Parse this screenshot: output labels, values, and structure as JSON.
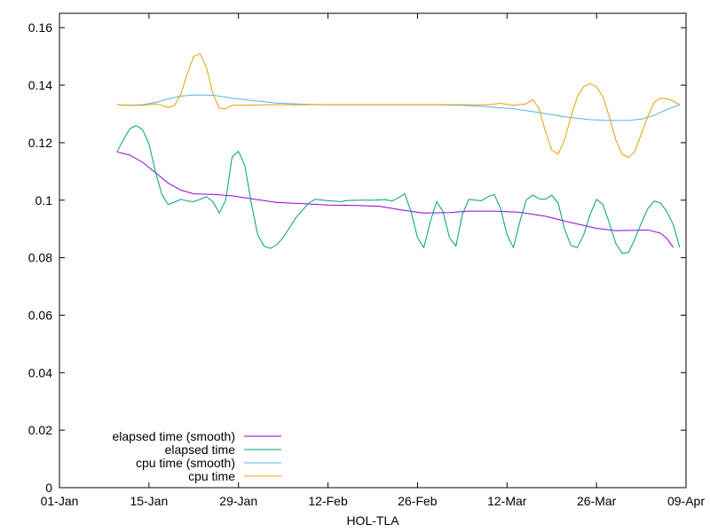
{
  "chart_data": {
    "type": "line",
    "title": "",
    "xlabel": "HOL-TLA",
    "ylabel": "",
    "x_ticks": [
      "01-Jan",
      "15-Jan",
      "29-Jan",
      "12-Feb",
      "26-Feb",
      "12-Mar",
      "26-Mar",
      "09-Apr"
    ],
    "y_ticks": [
      "0",
      "0.02",
      "0.04",
      "0.06",
      "0.08",
      "0.1",
      "0.12",
      "0.14",
      "0.16"
    ],
    "xlim": [
      "2023-01-01",
      "2023-04-09"
    ],
    "ylim": [
      0,
      0.165
    ],
    "grid": false,
    "legend_position": "bottom-left",
    "series": [
      {
        "name": "elapsed time (smooth)",
        "color": "#9400d3",
        "points": [
          [
            "2023-01-10",
            0.1168
          ],
          [
            "2023-01-12",
            0.1157
          ],
          [
            "2023-01-14",
            0.1132
          ],
          [
            "2023-01-16",
            0.1096
          ],
          [
            "2023-01-18",
            0.1059
          ],
          [
            "2023-01-20",
            0.1035
          ],
          [
            "2023-01-22",
            0.1022
          ],
          [
            "2023-01-25",
            0.102
          ],
          [
            "2023-01-28",
            0.1015
          ],
          [
            "2023-01-31",
            0.1005
          ],
          [
            "2023-02-04",
            0.0992
          ],
          [
            "2023-02-08",
            0.0988
          ],
          [
            "2023-02-12",
            0.0983
          ],
          [
            "2023-02-16",
            0.0982
          ],
          [
            "2023-02-20",
            0.0979
          ],
          [
            "2023-02-24",
            0.0964
          ],
          [
            "2023-02-27",
            0.0955
          ],
          [
            "2023-03-03",
            0.0957
          ],
          [
            "2023-03-06",
            0.0962
          ],
          [
            "2023-03-10",
            0.0962
          ],
          [
            "2023-03-14",
            0.0958
          ],
          [
            "2023-03-18",
            0.0944
          ],
          [
            "2023-03-22",
            0.0922
          ],
          [
            "2023-03-26",
            0.0902
          ],
          [
            "2023-03-29",
            0.0894
          ],
          [
            "2023-04-01",
            0.0895
          ],
          [
            "2023-04-03",
            0.0897
          ],
          [
            "2023-04-05",
            0.0885
          ],
          [
            "2023-04-06",
            0.0867
          ],
          [
            "2023-04-07",
            0.0836
          ]
        ]
      },
      {
        "name": "elapsed time",
        "color": "#009e73",
        "points": [
          [
            "2023-01-10",
            0.1168
          ],
          [
            "2023-01-11",
            0.121
          ],
          [
            "2023-01-12",
            0.1248
          ],
          [
            "2023-01-13",
            0.126
          ],
          [
            "2023-01-14",
            0.1245
          ],
          [
            "2023-01-15",
            0.1195
          ],
          [
            "2023-01-16",
            0.11
          ],
          [
            "2023-01-17",
            0.102
          ],
          [
            "2023-01-18",
            0.0985
          ],
          [
            "2023-01-19",
            0.0993
          ],
          [
            "2023-01-20",
            0.1003
          ],
          [
            "2023-01-21",
            0.0997
          ],
          [
            "2023-01-22",
            0.0995
          ],
          [
            "2023-01-23",
            0.1003
          ],
          [
            "2023-01-24",
            0.1012
          ],
          [
            "2023-01-25",
            0.0995
          ],
          [
            "2023-01-26",
            0.0955
          ],
          [
            "2023-01-27",
            0.1
          ],
          [
            "2023-01-28",
            0.115
          ],
          [
            "2023-01-29",
            0.117
          ],
          [
            "2023-01-30",
            0.112
          ],
          [
            "2023-01-31",
            0.099
          ],
          [
            "2023-02-01",
            0.088
          ],
          [
            "2023-02-02",
            0.084
          ],
          [
            "2023-02-03",
            0.0832
          ],
          [
            "2023-02-04",
            0.0845
          ],
          [
            "2023-02-05",
            0.087
          ],
          [
            "2023-02-07",
            0.094
          ],
          [
            "2023-02-09",
            0.099
          ],
          [
            "2023-02-10",
            0.1003
          ],
          [
            "2023-02-12",
            0.0998
          ],
          [
            "2023-02-14",
            0.0995
          ],
          [
            "2023-02-15",
            0.0999
          ],
          [
            "2023-02-17",
            0.1
          ],
          [
            "2023-02-19",
            0.1
          ],
          [
            "2023-02-21",
            0.1002
          ],
          [
            "2023-02-22",
            0.0997
          ],
          [
            "2023-02-23",
            0.1008
          ],
          [
            "2023-02-24",
            0.1022
          ],
          [
            "2023-02-25",
            0.096
          ],
          [
            "2023-02-26",
            0.087
          ],
          [
            "2023-02-27",
            0.0835
          ],
          [
            "2023-02-28",
            0.0925
          ],
          [
            "2023-03-01",
            0.0995
          ],
          [
            "2023-03-02",
            0.096
          ],
          [
            "2023-03-03",
            0.087
          ],
          [
            "2023-03-04",
            0.084
          ],
          [
            "2023-03-05",
            0.095
          ],
          [
            "2023-03-06",
            0.1003
          ],
          [
            "2023-03-07",
            0.1
          ],
          [
            "2023-03-08",
            0.0998
          ],
          [
            "2023-03-09",
            0.1012
          ],
          [
            "2023-03-10",
            0.102
          ],
          [
            "2023-03-11",
            0.097
          ],
          [
            "2023-03-12",
            0.088
          ],
          [
            "2023-03-13",
            0.0835
          ],
          [
            "2023-03-14",
            0.0925
          ],
          [
            "2023-03-15",
            0.1
          ],
          [
            "2023-03-16",
            0.1018
          ],
          [
            "2023-03-17",
            0.1005
          ],
          [
            "2023-03-18",
            0.1003
          ],
          [
            "2023-03-19",
            0.1017
          ],
          [
            "2023-03-20",
            0.099
          ],
          [
            "2023-03-21",
            0.09
          ],
          [
            "2023-03-22",
            0.0842
          ],
          [
            "2023-03-23",
            0.0835
          ],
          [
            "2023-03-24",
            0.088
          ],
          [
            "2023-03-25",
            0.095
          ],
          [
            "2023-03-26",
            0.1003
          ],
          [
            "2023-03-27",
            0.0985
          ],
          [
            "2023-03-28",
            0.092
          ],
          [
            "2023-03-29",
            0.085
          ],
          [
            "2023-03-30",
            0.0815
          ],
          [
            "2023-03-31",
            0.0818
          ],
          [
            "2023-04-01",
            0.0865
          ],
          [
            "2023-04-02",
            0.092
          ],
          [
            "2023-04-03",
            0.097
          ],
          [
            "2023-04-04",
            0.0997
          ],
          [
            "2023-04-05",
            0.099
          ],
          [
            "2023-04-06",
            0.096
          ],
          [
            "2023-04-07",
            0.0915
          ],
          [
            "2023-04-08",
            0.0836
          ]
        ]
      },
      {
        "name": "cpu time (smooth)",
        "color": "#56b4e9",
        "points": [
          [
            "2023-01-10",
            0.1332
          ],
          [
            "2023-01-12",
            0.133
          ],
          [
            "2023-01-14",
            0.1332
          ],
          [
            "2023-01-16",
            0.134
          ],
          [
            "2023-01-18",
            0.1352
          ],
          [
            "2023-01-20",
            0.1362
          ],
          [
            "2023-01-22",
            0.1366
          ],
          [
            "2023-01-25",
            0.1365
          ],
          [
            "2023-01-28",
            0.1355
          ],
          [
            "2023-01-31",
            0.1347
          ],
          [
            "2023-02-04",
            0.1338
          ],
          [
            "2023-02-08",
            0.1334
          ],
          [
            "2023-02-11",
            0.1332
          ],
          [
            "2023-02-15",
            0.1332
          ],
          [
            "2023-02-20",
            0.1332
          ],
          [
            "2023-02-25",
            0.1332
          ],
          [
            "2023-03-01",
            0.1332
          ],
          [
            "2023-03-05",
            0.133
          ],
          [
            "2023-03-09",
            0.1325
          ],
          [
            "2023-03-13",
            0.1318
          ],
          [
            "2023-03-17",
            0.1305
          ],
          [
            "2023-03-21",
            0.129
          ],
          [
            "2023-03-25",
            0.128
          ],
          [
            "2023-03-28",
            0.1277
          ],
          [
            "2023-03-31",
            0.1277
          ],
          [
            "2023-04-02",
            0.1282
          ],
          [
            "2023-04-04",
            0.1295
          ],
          [
            "2023-04-06",
            0.1315
          ],
          [
            "2023-04-08",
            0.1332
          ]
        ]
      },
      {
        "name": "cpu time",
        "color": "#e69f00",
        "points": [
          [
            "2023-01-10",
            0.1332
          ],
          [
            "2023-01-12",
            0.133
          ],
          [
            "2023-01-14",
            0.133
          ],
          [
            "2023-01-16",
            0.1335
          ],
          [
            "2023-01-17",
            0.133
          ],
          [
            "2023-01-18",
            0.1322
          ],
          [
            "2023-01-19",
            0.133
          ],
          [
            "2023-01-20",
            0.137
          ],
          [
            "2023-01-21",
            0.144
          ],
          [
            "2023-01-22",
            0.15
          ],
          [
            "2023-01-23",
            0.151
          ],
          [
            "2023-01-24",
            0.146
          ],
          [
            "2023-01-25",
            0.137
          ],
          [
            "2023-01-26",
            0.132
          ],
          [
            "2023-01-27",
            0.1318
          ],
          [
            "2023-01-28",
            0.133
          ],
          [
            "2023-02-04",
            0.1332
          ],
          [
            "2023-02-15",
            0.1332
          ],
          [
            "2023-02-25",
            0.1332
          ],
          [
            "2023-03-05",
            0.1332
          ],
          [
            "2023-03-09",
            0.1332
          ],
          [
            "2023-03-11",
            0.1337
          ],
          [
            "2023-03-13",
            0.133
          ],
          [
            "2023-03-15",
            0.1335
          ],
          [
            "2023-03-16",
            0.135
          ],
          [
            "2023-03-17",
            0.132
          ],
          [
            "2023-03-18",
            0.124
          ],
          [
            "2023-03-19",
            0.1175
          ],
          [
            "2023-03-20",
            0.116
          ],
          [
            "2023-03-21",
            0.121
          ],
          [
            "2023-03-22",
            0.129
          ],
          [
            "2023-03-23",
            0.136
          ],
          [
            "2023-03-24",
            0.1395
          ],
          [
            "2023-03-25",
            0.1405
          ],
          [
            "2023-03-26",
            0.1395
          ],
          [
            "2023-03-27",
            0.136
          ],
          [
            "2023-03-28",
            0.129
          ],
          [
            "2023-03-29",
            0.121
          ],
          [
            "2023-03-30",
            0.116
          ],
          [
            "2023-03-31",
            0.1148
          ],
          [
            "2023-04-01",
            0.117
          ],
          [
            "2023-04-02",
            0.123
          ],
          [
            "2023-04-03",
            0.129
          ],
          [
            "2023-04-04",
            0.134
          ],
          [
            "2023-04-05",
            0.1355
          ],
          [
            "2023-04-06",
            0.1352
          ],
          [
            "2023-04-07",
            0.1345
          ],
          [
            "2023-04-08",
            0.1332
          ]
        ]
      }
    ]
  }
}
